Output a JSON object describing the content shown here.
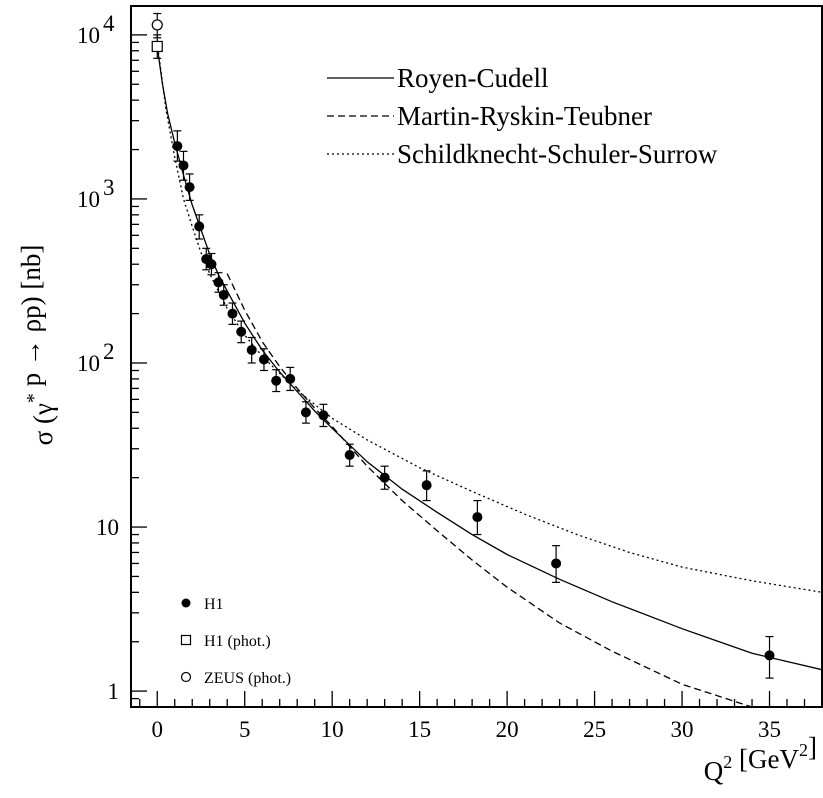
{
  "chart_data": {
    "type": "scatter",
    "title": "",
    "xlabel": "Q² [GeV²]",
    "ylabel": "σ (γ* p → ρp) [nb]",
    "xlim": [
      -1.5,
      38
    ],
    "ylim": [
      0.8,
      15000
    ],
    "yscale": "log",
    "grid": false,
    "x_ticks": [
      0,
      5,
      10,
      15,
      20,
      25,
      30,
      35
    ],
    "y_ticks": [
      {
        "value": 10000,
        "label": "10",
        "exp": "4"
      },
      {
        "value": 1000,
        "label": "10",
        "exp": "3"
      },
      {
        "value": 100,
        "label": "10",
        "exp": "2"
      },
      {
        "value": 10,
        "label": "10",
        "exp": ""
      },
      {
        "value": 1,
        "label": "1",
        "exp": ""
      }
    ],
    "curve_legend_position": "top-right",
    "marker_legend_position": "bottom-left",
    "curves": [
      {
        "name": "Royen-Cudell",
        "style": "solid",
        "x": [
          0,
          0.3,
          0.6,
          1.0,
          1.5,
          2.0,
          2.5,
          3.0,
          3.5,
          4.0,
          5.0,
          6.0,
          7.0,
          8.0,
          9.0,
          10.0,
          12.0,
          14.0,
          16.0,
          18.0,
          20.0,
          23.0,
          26.0,
          30.0,
          34.0,
          38.0
        ],
        "y": [
          8500,
          5000,
          3300,
          2200,
          1400,
          920,
          650,
          460,
          345,
          275,
          175,
          120,
          88,
          67,
          51,
          40,
          25,
          17,
          12.3,
          9.0,
          6.8,
          4.8,
          3.5,
          2.4,
          1.7,
          1.35
        ]
      },
      {
        "name": "Martin-Ryskin-Teubner",
        "style": "dashed",
        "x": [
          4.0,
          5.0,
          6.0,
          7.0,
          8.0,
          9.0,
          10.0,
          12.0,
          14.0,
          16.0,
          18.0,
          20.0,
          23.0,
          26.0,
          30.0,
          34.0
        ],
        "y": [
          350,
          210,
          135,
          95,
          70,
          53,
          41,
          23.5,
          14.5,
          9.5,
          6.3,
          4.3,
          2.6,
          1.75,
          1.1,
          0.8
        ]
      },
      {
        "name": "Schildknecht-Schuler-Surrow",
        "style": "dotted",
        "x": [
          0,
          0.5,
          1.0,
          1.5,
          2.0,
          2.5,
          3.0,
          4.0,
          5.0,
          6.0,
          8.0,
          10.0,
          12.0,
          15.0,
          18.0,
          21.0,
          24.0,
          27.0,
          30.0,
          34.0,
          38.0
        ],
        "y": [
          9000,
          3500,
          1800,
          1000,
          680,
          470,
          350,
          215,
          148,
          110,
          68,
          46,
          34,
          23,
          16.5,
          12.0,
          9.0,
          7.0,
          5.7,
          4.7,
          4.0
        ]
      }
    ],
    "marker_legend": [
      {
        "name": "H1",
        "marker": "filled-circle"
      },
      {
        "name": "H1 (phot.)",
        "marker": "open-square"
      },
      {
        "name": "ZEUS (phot.)",
        "marker": "open-circle"
      }
    ],
    "series": [
      {
        "name": "H1",
        "marker": "filled-circle",
        "points": [
          {
            "x": 1.15,
            "y": 2100,
            "lo": 1700,
            "hi": 2600
          },
          {
            "x": 1.5,
            "y": 1600,
            "lo": 1300,
            "hi": 1950
          },
          {
            "x": 1.85,
            "y": 1180,
            "lo": 980,
            "hi": 1420
          },
          {
            "x": 2.4,
            "y": 680,
            "lo": 570,
            "hi": 800
          },
          {
            "x": 2.8,
            "y": 430,
            "lo": 370,
            "hi": 500
          },
          {
            "x": 3.1,
            "y": 400,
            "lo": 345,
            "hi": 465
          },
          {
            "x": 3.5,
            "y": 310,
            "lo": 270,
            "hi": 355
          },
          {
            "x": 3.8,
            "y": 260,
            "lo": 225,
            "hi": 300
          },
          {
            "x": 4.3,
            "y": 200,
            "lo": 172,
            "hi": 232
          },
          {
            "x": 4.8,
            "y": 155,
            "lo": 133,
            "hi": 180
          },
          {
            "x": 5.4,
            "y": 120,
            "lo": 100,
            "hi": 143
          },
          {
            "x": 6.1,
            "y": 105,
            "lo": 90,
            "hi": 122
          },
          {
            "x": 6.8,
            "y": 78,
            "lo": 67,
            "hi": 91
          },
          {
            "x": 7.6,
            "y": 80,
            "lo": 68,
            "hi": 94
          },
          {
            "x": 8.5,
            "y": 50,
            "lo": 43,
            "hi": 58
          },
          {
            "x": 9.5,
            "y": 48,
            "lo": 41,
            "hi": 56
          },
          {
            "x": 11.0,
            "y": 27.5,
            "lo": 23.5,
            "hi": 32
          },
          {
            "x": 13.0,
            "y": 20,
            "lo": 17,
            "hi": 23.5
          },
          {
            "x": 15.4,
            "y": 18,
            "lo": 14.5,
            "hi": 22
          },
          {
            "x": 18.3,
            "y": 11.5,
            "lo": 9.0,
            "hi": 14.5
          },
          {
            "x": 22.8,
            "y": 6.0,
            "lo": 4.6,
            "hi": 7.7
          },
          {
            "x": 35.0,
            "y": 1.65,
            "lo": 1.2,
            "hi": 2.15
          }
        ]
      },
      {
        "name": "H1 (phot.)",
        "marker": "open-square",
        "points": [
          {
            "x": 0,
            "y": 8500,
            "lo": 7200,
            "hi": 10000
          }
        ]
      },
      {
        "name": "ZEUS (phot.)",
        "marker": "open-circle",
        "points": [
          {
            "x": 0,
            "y": 11500,
            "lo": 9600,
            "hi": 13500
          }
        ]
      }
    ]
  }
}
